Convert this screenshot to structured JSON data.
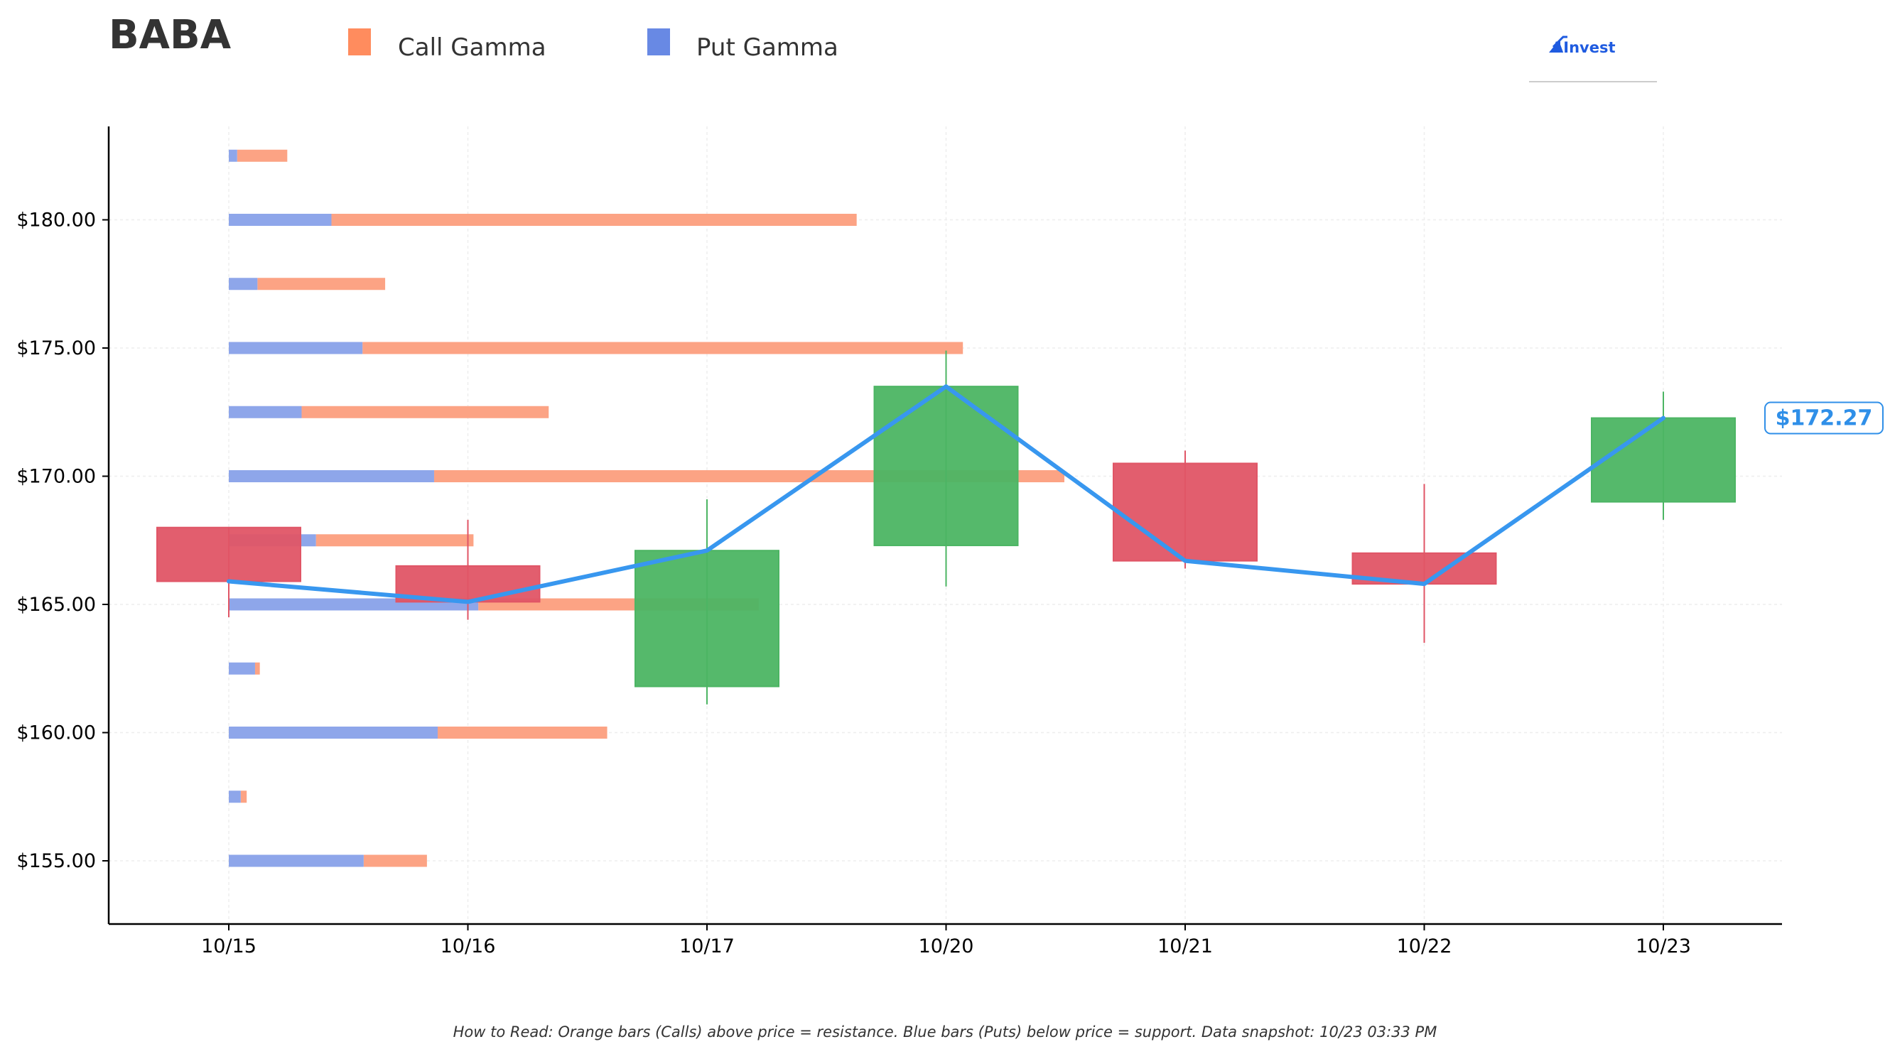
{
  "header": {
    "ticker": "BABA",
    "logo_text": "AInvest"
  },
  "legend": [
    {
      "label": "Call Gamma",
      "color": "#ff8c5e"
    },
    {
      "label": "Put Gamma",
      "color": "#6889e4"
    }
  ],
  "colors": {
    "call_bar": "#fca384",
    "put_bar": "#8ea6ea",
    "up_candle": "#4cb563",
    "down_candle": "#e05566",
    "price_line": "#3897ef",
    "axis": "#000000",
    "grid": "#eeeeee"
  },
  "footnote": "How to Read: Orange bars (Calls) above price = resistance. Blue bars (Puts) below price = support. Data snapshot: 10/23 03:33 PM",
  "chart_data": {
    "type": "candlestick",
    "x_categories": [
      "10/15",
      "10/16",
      "10/17",
      "10/20",
      "10/21",
      "10/22",
      "10/23"
    ],
    "y_ticks": [
      "$155.00",
      "$160.00",
      "$165.00",
      "$170.00",
      "$175.00",
      "$180.00"
    ],
    "y_tick_values": [
      155,
      160,
      165,
      170,
      175,
      180
    ],
    "ylim": [
      152.5,
      183.5
    ],
    "grid": true,
    "candles": [
      {
        "date": "10/15",
        "open": 168.0,
        "high": 168.0,
        "low": 164.5,
        "close": 165.9
      },
      {
        "date": "10/16",
        "open": 166.5,
        "high": 168.3,
        "low": 164.4,
        "close": 165.1
      },
      {
        "date": "10/17",
        "open": 161.8,
        "high": 169.1,
        "low": 161.1,
        "close": 167.1
      },
      {
        "date": "10/20",
        "open": 167.3,
        "high": 174.9,
        "low": 165.7,
        "close": 173.5
      },
      {
        "date": "10/21",
        "open": 170.5,
        "high": 171.0,
        "low": 166.4,
        "close": 166.7
      },
      {
        "date": "10/22",
        "open": 167.0,
        "high": 169.7,
        "low": 163.5,
        "close": 165.8
      },
      {
        "date": "10/23",
        "open": 169.0,
        "high": 173.3,
        "low": 168.3,
        "close": 172.27
      }
    ],
    "price_line": [
      165.9,
      165.1,
      167.1,
      173.5,
      166.7,
      165.8,
      172.27
    ],
    "current_price_label": "$172.27",
    "gamma_bars": [
      {
        "strike": 182.5,
        "put": 0.35,
        "call": 2.45
      },
      {
        "strike": 180.0,
        "put": 4.3,
        "call": 26.3
      },
      {
        "strike": 177.5,
        "put": 1.2,
        "call": 6.55
      },
      {
        "strike": 175.0,
        "put": 5.6,
        "call": 30.75
      },
      {
        "strike": 172.5,
        "put": 3.05,
        "call": 13.4
      },
      {
        "strike": 170.0,
        "put": 8.6,
        "call": 35.0
      },
      {
        "strike": 167.5,
        "put": 3.65,
        "call": 10.25
      },
      {
        "strike": 165.0,
        "put": 10.45,
        "call": 22.2
      },
      {
        "strike": 162.5,
        "put": 1.1,
        "call": 1.3
      },
      {
        "strike": 160.0,
        "put": 8.75,
        "call": 15.85
      },
      {
        "strike": 157.5,
        "put": 0.5,
        "call": 0.75
      },
      {
        "strike": 155.0,
        "put": 5.65,
        "call": 8.3
      }
    ]
  }
}
